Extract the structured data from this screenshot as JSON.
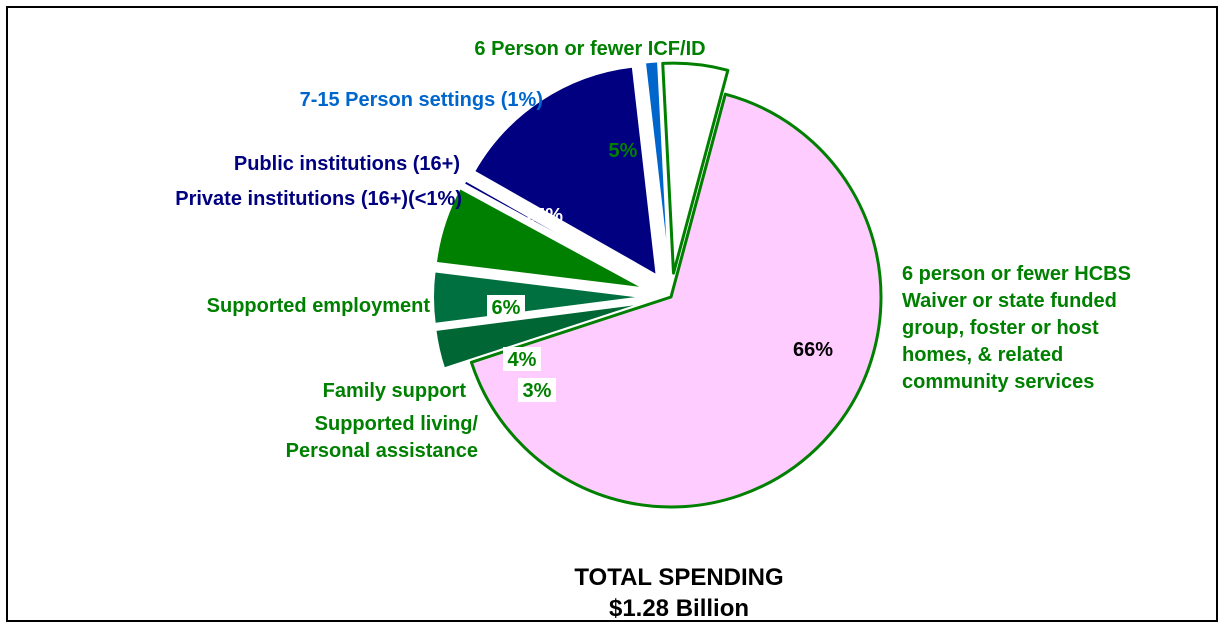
{
  "chart_data": {
    "type": "pie",
    "title": "",
    "slices": [
      {
        "label": "6 person or fewer HCBS Waiver or state funded group, foster or host homes, & related community services",
        "label_lines": [
          "6 person or fewer HCBS",
          "Waiver or state funded",
          "group, foster or host",
          "homes, & related",
          "community services"
        ],
        "value": 66,
        "pct_text": "66%",
        "color": "#ffccff",
        "stroke": "#008000",
        "label_color": "#008000"
      },
      {
        "label": "Supported living/ Personal assistance",
        "label_lines": [
          "Supported living/",
          "Personal assistance"
        ],
        "value": 3,
        "pct_text": "3%",
        "color": "#006633",
        "stroke": "#ffffff",
        "label_color": "#008000"
      },
      {
        "label": "Family support",
        "label_lines": [
          "Family support"
        ],
        "value": 4,
        "pct_text": "4%",
        "color": "#007040",
        "stroke": "#ffffff",
        "label_color": "#008000"
      },
      {
        "label": "Supported employment",
        "label_lines": [
          "Supported employment"
        ],
        "value": 6,
        "pct_text": "6%",
        "color": "#008000",
        "stroke": "#ffffff",
        "label_color": "#008000"
      },
      {
        "label": "Private institutions (16+)(<1%)",
        "label_lines": [
          "Private institutions (16+)(<1%)"
        ],
        "value": 0.3,
        "pct_text": "",
        "color": "#000080",
        "stroke": "#ffffff",
        "label_color": "#000080"
      },
      {
        "label": "Public institutions (16+)",
        "label_lines": [
          "Public institutions (16+)"
        ],
        "value": 15,
        "pct_text": "15%",
        "color": "#000080",
        "stroke": "#ffffff",
        "label_color": "#000080"
      },
      {
        "label": "7-15 Person settings (1%)",
        "label_lines": [
          "7-15 Person settings (1%)"
        ],
        "value": 1,
        "pct_text": "",
        "color": "#0066cc",
        "stroke": "#ffffff",
        "label_color": "#0066cc"
      },
      {
        "label": "6 Person or fewer ICF/ID",
        "label_lines": [
          "6 Person or fewer ICF/ID"
        ],
        "value": 5,
        "pct_text": "5%",
        "color": "#ffffff",
        "stroke": "#008000",
        "label_color": "#008000"
      }
    ],
    "annotation": [
      "TOTAL SPENDING",
      "$1.28 Billion"
    ]
  }
}
